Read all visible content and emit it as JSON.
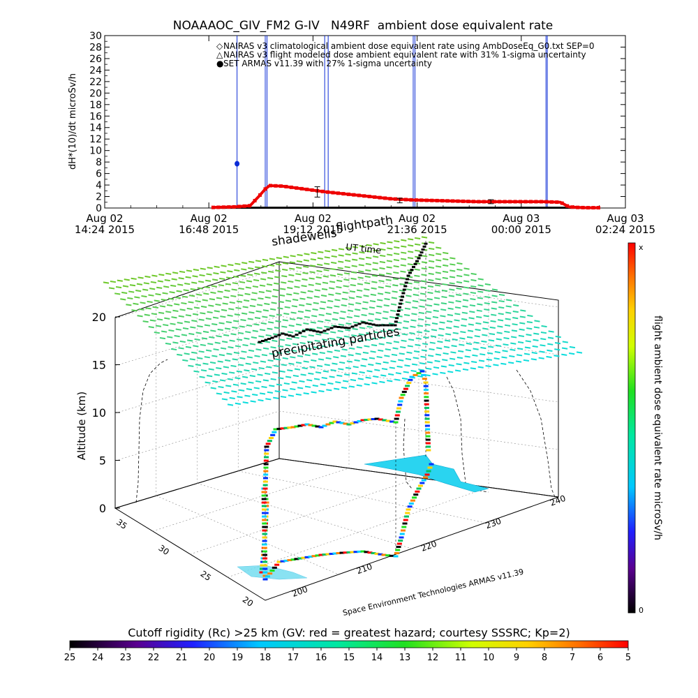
{
  "chart_data": [
    {
      "type": "line",
      "title": "NOAAAOC_GIV_FM2 G-IV   N49RF  ambient dose equivalent rate",
      "ylabel": "dH*(10)/dt microSv/h",
      "xlabel": "UT time",
      "ylim": [
        0,
        30
      ],
      "yticks": [
        "0",
        "2",
        "4",
        "6",
        "8",
        "10",
        "12",
        "14",
        "16",
        "18",
        "20",
        "22",
        "24",
        "26",
        "28",
        "30"
      ],
      "xtick_labels": [
        {
          "date": "Aug 02",
          "time": "14:24 2015"
        },
        {
          "date": "Aug 02",
          "time": "16:48 2015"
        },
        {
          "date": "Aug 02",
          "time": "19:12 2015"
        },
        {
          "date": "Aug 02",
          "time": "21:36 2015"
        },
        {
          "date": "Aug 03",
          "time": "00:00 2015"
        },
        {
          "date": "Aug 03",
          "time": "02:24 2015"
        }
      ],
      "x_hours_range": [
        14.4,
        26.4
      ],
      "legend": [
        {
          "marker": "◇",
          "color": "#e00000",
          "text": "NAIRAS v3 climatological ambient dose equivalent rate using AmbDoseEq_G0.txt SEP=0"
        },
        {
          "marker": "△",
          "color": "#000000",
          "text": "NAIRAS v3 flight modeled dose ambient equivalent rate with 31% 1-sigma uncertainty"
        },
        {
          "marker": "●",
          "color": "#0a2bd6",
          "text": "SET ARMAS v11.39 with 27% 1-sigma uncertainty"
        }
      ],
      "series": [
        {
          "name": "NAIRAS v3 climatological",
          "x": [
            16.9,
            17.4,
            17.75,
            17.95,
            18.1,
            18.2,
            18.5,
            18.8,
            19.0,
            19.5,
            20.0,
            20.5,
            21.0,
            21.5,
            22.0,
            22.5,
            23.0,
            23.5,
            24.0,
            24.5,
            24.9,
            25.0,
            25.1,
            25.3,
            25.5,
            25.8
          ],
          "values": [
            0.1,
            0.2,
            0.4,
            2.0,
            3.3,
            3.9,
            3.8,
            3.5,
            3.3,
            2.8,
            2.4,
            2.0,
            1.6,
            1.4,
            1.3,
            1.2,
            1.1,
            1.1,
            1.1,
            1.1,
            1.0,
            0.6,
            0.2,
            0.1,
            0.05,
            0.05
          ]
        },
        {
          "name": "NAIRAS v3 flight modeled",
          "x": [
            16.9,
            25.8
          ],
          "values": [
            0.05,
            0.05
          ],
          "error_bars": [
            {
              "x": 19.3,
              "y": 2.8,
              "err": 0.9
            },
            {
              "x": 21.2,
              "y": 1.3,
              "err": 0.4
            },
            {
              "x": 23.3,
              "y": 1.1,
              "err": 0.35
            }
          ]
        },
        {
          "name": "SET ARMAS v11.39",
          "points": [
            {
              "x": 17.45,
              "y": 7.7
            }
          ],
          "spikes_x": [
            17.45,
            18.1,
            18.14,
            19.47,
            19.55,
            21.51,
            21.55,
            24.57,
            24.6
          ]
        }
      ]
    },
    {
      "type": "scatter",
      "subtype": "3d-flight-track",
      "zlabel": "Altitude (km)",
      "zticks": [
        "0",
        "5",
        "10",
        "15",
        "20"
      ],
      "lat_ticks": [
        "35",
        "30",
        "25",
        "20"
      ],
      "lon_ticks": [
        "200",
        "210",
        "220",
        "230",
        "240"
      ],
      "colorbar_label": "flight ambient dose equivalent rate microSv/h",
      "colorbar_top": "x",
      "colorbar_bottom": "0",
      "annotations": [
        "shadewells",
        "flightpath",
        "precipitating particles"
      ],
      "credit": "Space Environment Technologies ARMAS v11.39"
    },
    {
      "type": "heatmap",
      "subtype": "colorbar",
      "title": "Cutoff rigidity (Rc) >25 km (GV: red = greatest hazard; courtesy SSSRC; Kp=2)",
      "ticks": [
        "25",
        "24",
        "23",
        "22",
        "21",
        "20",
        "19",
        "18",
        "17",
        "16",
        "15",
        "14",
        "13",
        "12",
        "11",
        "10",
        "9",
        "8",
        "7",
        "6",
        "5"
      ]
    }
  ]
}
